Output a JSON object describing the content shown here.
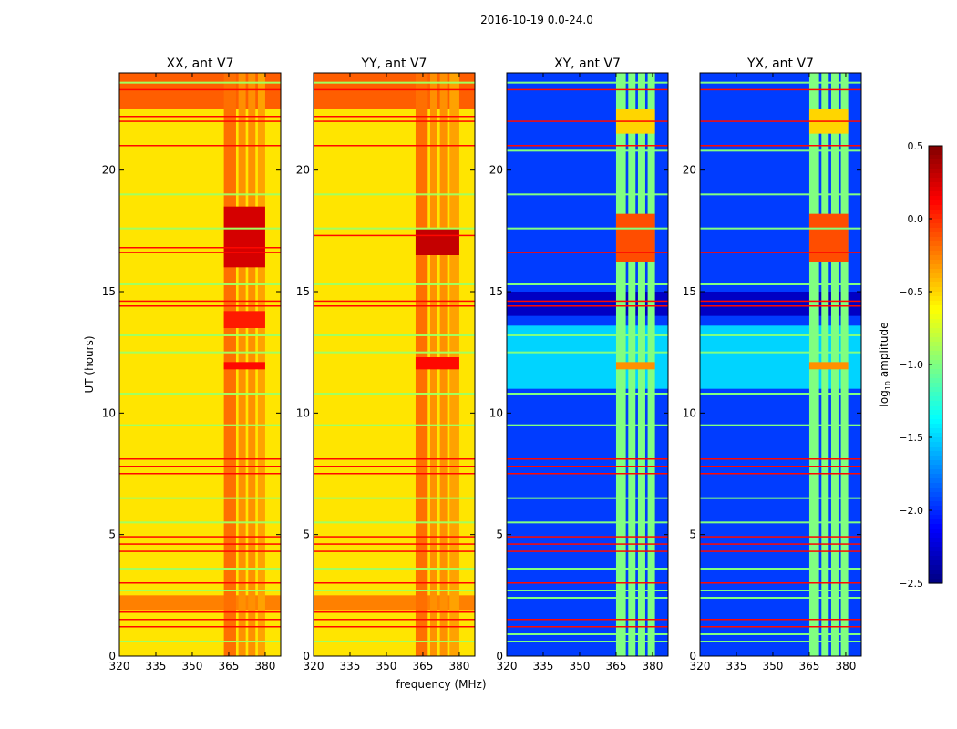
{
  "chart_data": {
    "type": "heatmap",
    "title": "2016-10-19 0.0-24.0",
    "xlabel": "frequency (MHz)",
    "ylabel": "UT (hours)",
    "xlim": [
      320,
      386.4
    ],
    "ylim": [
      0,
      24
    ],
    "xticks": [
      320,
      335,
      350,
      365,
      380
    ],
    "yticks": [
      0,
      5,
      10,
      15,
      20
    ],
    "colorbar": {
      "label": "log10 amplitude",
      "label_main": "log",
      "label_sub": "10",
      "label_tail": " amplitude",
      "range": [
        -2.5,
        0.5
      ],
      "ticks": [
        "0.5",
        "0.0",
        "−0.5",
        "−1.0",
        "−1.5",
        "−2.0",
        "−2.5"
      ],
      "tick_values": [
        0.5,
        0,
        -0.5,
        -1,
        -1.5,
        -2,
        -2.5
      ],
      "colormap": "jet"
    },
    "panels": [
      {
        "title": "XX, ant V7",
        "background": -0.55,
        "regions": [
          [
            320,
            386.4,
            22.5,
            24,
            -0.15
          ],
          [
            320,
            386.4,
            1.9,
            2.5,
            -0.25
          ],
          [
            363,
            368,
            0,
            24,
            -0.2
          ],
          [
            369,
            372,
            0,
            24,
            -0.3
          ],
          [
            373,
            376,
            0,
            24,
            -0.3
          ],
          [
            377,
            380,
            0,
            24,
            -0.35
          ],
          [
            363,
            380,
            16,
            18.5,
            0.25
          ],
          [
            363,
            380,
            11.8,
            12.1,
            0.1
          ],
          [
            363,
            380,
            13.5,
            14.2,
            0.05
          ]
        ],
        "red_lines": [
          1.2,
          1.5,
          1.8,
          3.0,
          4.3,
          4.6,
          4.9,
          7.5,
          7.8,
          8.1,
          14.4,
          14.6,
          16.6,
          16.8,
          21.0,
          22.0,
          22.2,
          23.3
        ],
        "line_lines": [
          0.6,
          2.7,
          3.6,
          5.5,
          6.5,
          9.5,
          10.8,
          12.5,
          13.2,
          15.3,
          17.6,
          19.0,
          23.6
        ],
        "line_value": -0.9
      },
      {
        "title": "YY, ant V7",
        "background": -0.55,
        "regions": [
          [
            320,
            386.4,
            22.5,
            24,
            -0.15
          ],
          [
            320,
            386.4,
            1.9,
            2.5,
            -0.25
          ],
          [
            362,
            367,
            0,
            24,
            -0.2
          ],
          [
            368,
            371,
            0,
            24,
            -0.3
          ],
          [
            372,
            375,
            0,
            24,
            -0.3
          ],
          [
            376,
            380,
            0,
            24,
            -0.35
          ],
          [
            362,
            380,
            16.5,
            17.6,
            0.3
          ],
          [
            362,
            380,
            11.8,
            12.3,
            0.1
          ]
        ],
        "red_lines": [
          1.2,
          1.5,
          1.8,
          3.0,
          4.3,
          4.6,
          4.9,
          7.5,
          7.8,
          8.1,
          14.4,
          14.6,
          17.3,
          21.0,
          22.0,
          22.2,
          23.3
        ],
        "line_lines": [
          0.6,
          2.7,
          3.6,
          5.5,
          6.5,
          9.5,
          10.8,
          12.5,
          13.2,
          15.3,
          17.6,
          19.0,
          23.6
        ],
        "line_value": -0.9
      },
      {
        "title": "XY, ant V7",
        "background": -1.95,
        "regions": [
          [
            320,
            386.4,
            11,
            13.6,
            -1.5
          ],
          [
            320,
            386.4,
            14,
            15,
            -2.3
          ],
          [
            365,
            369,
            0,
            24,
            -1.0
          ],
          [
            370,
            373,
            0,
            24,
            -1.0
          ],
          [
            374,
            377,
            0,
            24,
            -1.0
          ],
          [
            378,
            381,
            0,
            24,
            -1.0
          ],
          [
            365,
            381,
            16.2,
            18.2,
            -0.1
          ],
          [
            365,
            381,
            21.5,
            22.5,
            -0.5
          ],
          [
            365,
            381,
            11.8,
            12.1,
            -0.3
          ]
        ],
        "red_lines": [
          1.2,
          1.5,
          3.0,
          4.3,
          4.6,
          4.9,
          7.5,
          7.8,
          8.1,
          14.4,
          14.6,
          16.6,
          21.0,
          22.0,
          23.3
        ],
        "line_lines": [
          0.6,
          0.9,
          2.4,
          2.7,
          3.6,
          5.5,
          6.5,
          9.5,
          10.8,
          12.5,
          13.2,
          15.3,
          17.6,
          19.0,
          20.8,
          23.6
        ],
        "line_value": -1.0
      },
      {
        "title": "YX, ant V7",
        "background": -1.95,
        "regions": [
          [
            320,
            386.4,
            11,
            13.6,
            -1.5
          ],
          [
            320,
            386.4,
            14,
            15,
            -2.3
          ],
          [
            365,
            369,
            0,
            24,
            -1.0
          ],
          [
            370,
            373,
            0,
            24,
            -1.0
          ],
          [
            374,
            377,
            0,
            24,
            -1.0
          ],
          [
            378,
            381,
            0,
            24,
            -1.0
          ],
          [
            365,
            381,
            16.2,
            18.2,
            -0.1
          ],
          [
            365,
            381,
            21.5,
            22.5,
            -0.5
          ],
          [
            365,
            381,
            11.8,
            12.1,
            -0.3
          ]
        ],
        "red_lines": [
          1.2,
          1.5,
          3.0,
          4.3,
          4.6,
          4.9,
          7.5,
          7.8,
          8.1,
          14.4,
          14.6,
          16.6,
          21.0,
          22.0,
          23.3
        ],
        "line_lines": [
          0.6,
          0.9,
          2.4,
          2.7,
          3.6,
          5.5,
          6.5,
          9.5,
          10.8,
          12.5,
          13.2,
          15.3,
          17.6,
          19.0,
          20.8,
          23.6
        ],
        "line_value": -1.0
      }
    ]
  }
}
